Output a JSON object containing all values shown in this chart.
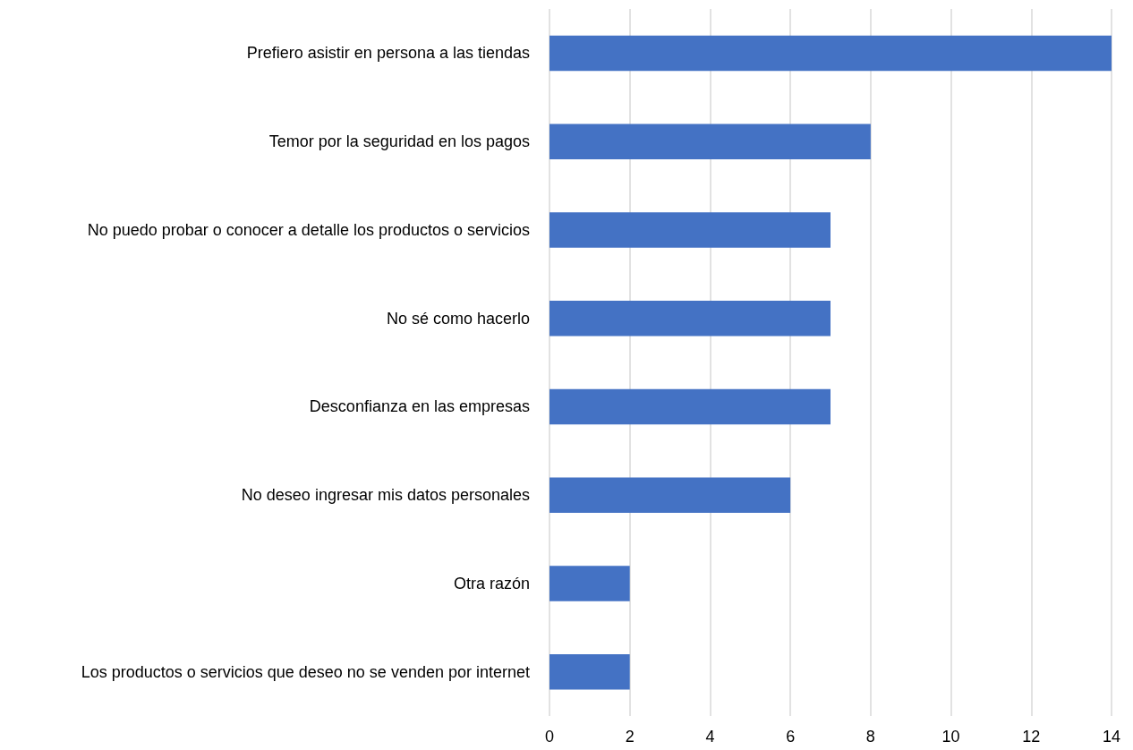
{
  "chart_data": {
    "type": "bar",
    "orientation": "horizontal",
    "categories": [
      "Prefiero asistir en persona a las tiendas",
      "Temor por la seguridad en los pagos",
      "No puedo probar o conocer a detalle los productos o servicios",
      "No sé como hacerlo",
      "Desconfianza en las empresas",
      "No deseo ingresar mis datos personales",
      "Otra razón",
      "Los productos o servicios que deseo no se venden por internet"
    ],
    "values": [
      14,
      8,
      7,
      7,
      7,
      6,
      2,
      2
    ],
    "color": "#4472c4",
    "xlim": [
      0,
      14
    ],
    "xticks": [
      0,
      2,
      4,
      6,
      8,
      10,
      12,
      14
    ],
    "grid": "x"
  }
}
